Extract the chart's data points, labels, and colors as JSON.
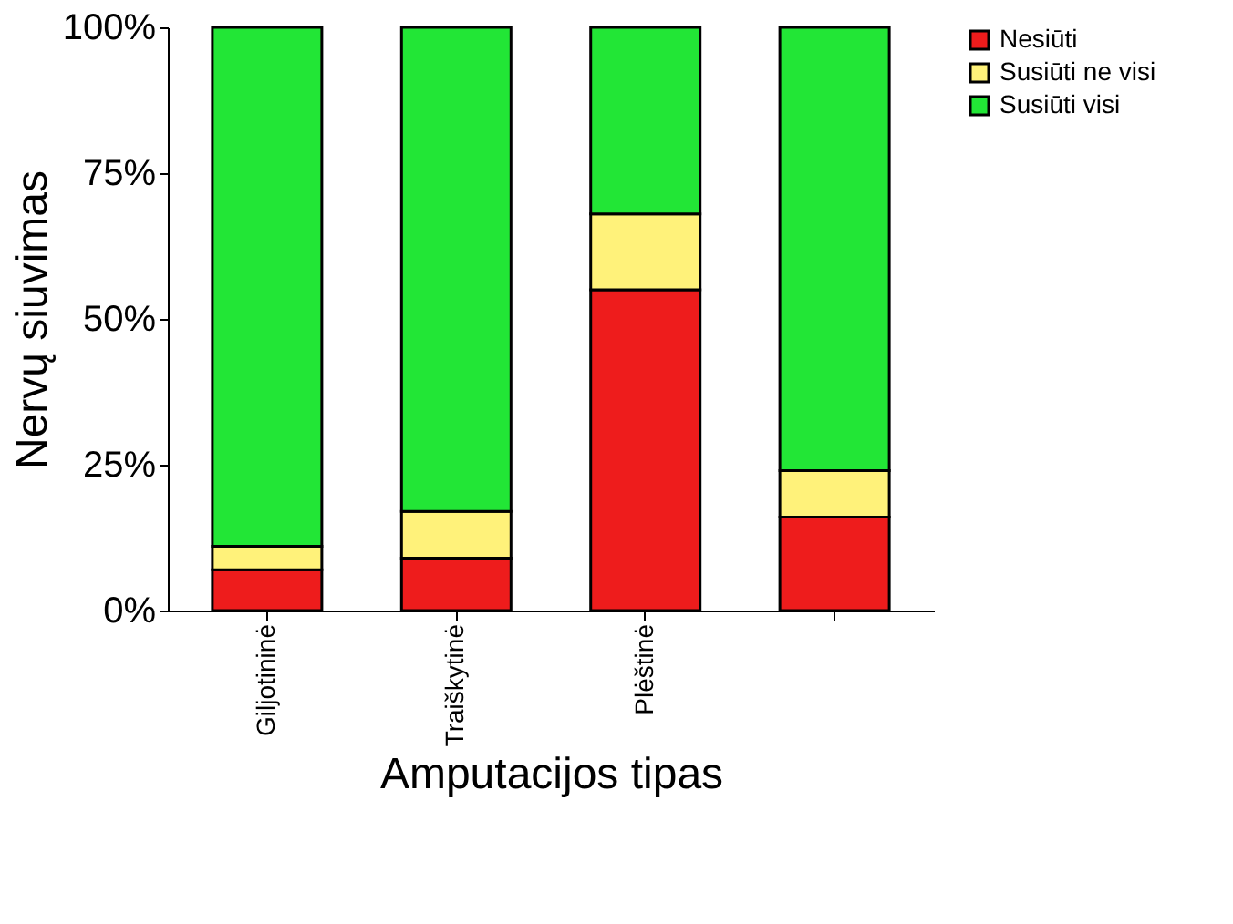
{
  "chart_data": {
    "type": "bar",
    "stacked": true,
    "xlabel": "Amputacijos tipas",
    "ylabel": "Nervų siuvimas",
    "categories": [
      "Giljotininė",
      "Traiškytinė",
      "Plėštinė",
      null
    ],
    "series": [
      {
        "name": "Nesiūti",
        "color": "#ee1c1c",
        "values": [
          7,
          9,
          55,
          16
        ]
      },
      {
        "name": "Susiūti ne visi",
        "color": "#fff27a",
        "values": [
          4,
          8,
          13,
          8
        ]
      },
      {
        "name": "Susiūti visi",
        "color": "#22e636",
        "values": [
          89,
          83,
          32,
          76
        ]
      }
    ],
    "ylim": [
      0,
      100
    ],
    "yticks": [
      {
        "value": 0,
        "label": "0%"
      },
      {
        "value": 25,
        "label": "25%"
      },
      {
        "value": 50,
        "label": "50%"
      },
      {
        "value": 75,
        "label": "75%"
      },
      {
        "value": 100,
        "label": "100%"
      }
    ],
    "grid": false,
    "legend": "right"
  }
}
